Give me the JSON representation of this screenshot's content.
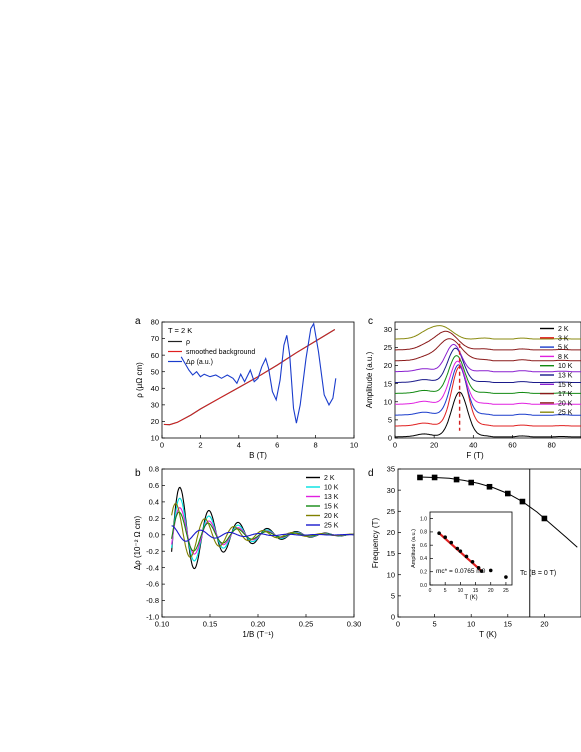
{
  "figure": {
    "panel_letters": [
      "a",
      "b",
      "c",
      "d"
    ]
  },
  "chart_data": [
    {
      "panel": "a",
      "type": "line",
      "annotation": "T = 2 K",
      "xlabel": "B (T)",
      "ylabel": "ρ (μΩ cm)",
      "xlim": [
        0,
        10
      ],
      "ylim": [
        10,
        80
      ],
      "x_ticks": [
        0,
        2,
        4,
        6,
        8,
        10
      ],
      "y_ticks": [
        10,
        20,
        30,
        40,
        50,
        60,
        70,
        80
      ],
      "legend": [
        "ρ",
        "smoothed background",
        "Δρ (a.u.)"
      ],
      "legend_position": "top-left",
      "series": [
        {
          "name": "ρ",
          "color": "#222222",
          "points": [
            [
              0.1,
              18.2
            ],
            [
              0.4,
              18.0
            ],
            [
              0.8,
              19.5
            ],
            [
              1.5,
              23.8
            ],
            [
              2,
              27.5
            ],
            [
              3,
              34
            ],
            [
              4,
              40.5
            ],
            [
              5,
              47
            ],
            [
              6,
              54
            ],
            [
              7,
              61.5
            ],
            [
              8,
              68.5
            ],
            [
              9,
              75.5
            ]
          ]
        },
        {
          "name": "smoothed background",
          "color": "#e02020",
          "points": [
            [
              0.1,
              18.2
            ],
            [
              0.4,
              18.0
            ],
            [
              0.8,
              19.5
            ],
            [
              1.5,
              23.8
            ],
            [
              2,
              27.5
            ],
            [
              3,
              34
            ],
            [
              4,
              40.5
            ],
            [
              5,
              47
            ],
            [
              6,
              54
            ],
            [
              7,
              61.5
            ],
            [
              8,
              68.5
            ],
            [
              9,
              75.5
            ]
          ]
        },
        {
          "name": "Δρ (a.u.)",
          "color": "#1a3ccc",
          "points": [
            [
              1.0,
              59
            ],
            [
              1.2,
              55
            ],
            [
              1.4,
              51
            ],
            [
              1.6,
              48
            ],
            [
              1.8,
              50
            ],
            [
              2.0,
              47
            ],
            [
              2.2,
              48.5
            ],
            [
              2.5,
              47
            ],
            [
              2.8,
              48
            ],
            [
              3.1,
              46
            ],
            [
              3.4,
              48
            ],
            [
              3.7,
              46
            ],
            [
              3.9,
              43
            ],
            [
              4.1,
              48.5
            ],
            [
              4.3,
              44
            ],
            [
              4.6,
              51
            ],
            [
              4.8,
              44
            ],
            [
              5.0,
              46
            ],
            [
              5.2,
              53
            ],
            [
              5.4,
              58
            ],
            [
              5.55,
              52
            ],
            [
              5.75,
              38
            ],
            [
              5.95,
              33
            ],
            [
              6.15,
              45
            ],
            [
              6.35,
              66
            ],
            [
              6.5,
              72
            ],
            [
              6.65,
              60
            ],
            [
              6.85,
              28
            ],
            [
              7.0,
              19
            ],
            [
              7.2,
              30
            ],
            [
              7.5,
              58
            ],
            [
              7.75,
              76
            ],
            [
              7.9,
              79
            ],
            [
              8.15,
              62
            ],
            [
              8.45,
              36
            ],
            [
              8.7,
              30
            ],
            [
              8.9,
              34
            ],
            [
              9.05,
              46
            ]
          ]
        }
      ]
    },
    {
      "panel": "b",
      "type": "line",
      "xlabel": "1/B (T⁻¹)",
      "ylabel": "Δρ (10⁻² Ω cm)",
      "xlim": [
        0.1,
        0.3
      ],
      "ylim": [
        -1.0,
        0.8
      ],
      "x_ticks": [
        0.1,
        0.15,
        0.2,
        0.25,
        0.3
      ],
      "y_ticks": [
        -1.0,
        -0.8,
        -0.6,
        -0.4,
        -0.2,
        0.0,
        0.2,
        0.4,
        0.6,
        0.8
      ],
      "legend_position": "top-right",
      "series": [
        {
          "name": "2 K",
          "color": "#000000",
          "amplitude": 0.7,
          "phase": 0.0
        },
        {
          "name": "10 K",
          "color": "#00e0e0",
          "amplitude": 0.54,
          "phase": 0.0
        },
        {
          "name": "13 K",
          "color": "#e020e0",
          "amplitude": 0.4,
          "phase": 0.0
        },
        {
          "name": "15 K",
          "color": "#138a13",
          "amplitude": 0.33,
          "phase": 0.15
        },
        {
          "name": "20 K",
          "color": "#808000",
          "amplitude": 0.42,
          "phase": 0.9
        },
        {
          "name": "25 K",
          "color": "#1a1acc",
          "amplitude": 0.11,
          "phase": 1.8
        }
      ],
      "oscillation": {
        "frequency_T": 33,
        "x_start": 0.11,
        "x_end": 0.3,
        "damping": 12
      }
    },
    {
      "panel": "c",
      "type": "line",
      "xlabel": "F (T)",
      "ylabel": "Amplitude (a.u.)",
      "xlim": [
        0,
        95
      ],
      "ylim": [
        0,
        32
      ],
      "x_ticks": [
        0,
        20,
        40,
        60,
        80
      ],
      "y_ticks": [
        0,
        5,
        10,
        15,
        20,
        25,
        30
      ],
      "legend_position": "right",
      "peak_marker_F": 33,
      "series": [
        {
          "name": "2 K",
          "color": "#000000",
          "offset": 0,
          "peak": 12.5,
          "peak_F": 33
        },
        {
          "name": "3 K",
          "color": "#e02020",
          "offset": 3,
          "peak": 19.5,
          "peak_F": 33
        },
        {
          "name": "5 K",
          "color": "#1a3ccc",
          "offset": 6,
          "peak": 20.0,
          "peak_F": 32.5
        },
        {
          "name": "8 K",
          "color": "#e020e0",
          "offset": 9,
          "peak": 21.0,
          "peak_F": 32
        },
        {
          "name": "10 K",
          "color": "#138a13",
          "offset": 12,
          "peak": 22.5,
          "peak_F": 31.5
        },
        {
          "name": "13 K",
          "color": "#1a1a8a",
          "offset": 15,
          "peak": 24.5,
          "peak_F": 31
        },
        {
          "name": "15 K",
          "color": "#8a20d0",
          "offset": 18,
          "peak": 25.5,
          "peak_F": 30
        },
        {
          "name": "17 K",
          "color": "#8a1a1a",
          "offset": 21,
          "peak": 27.0,
          "peak_F": 28
        },
        {
          "name": "20 K",
          "color": "#8a1a1a",
          "offset": 24,
          "peak": 29.0,
          "peak_F": 26
        },
        {
          "name": "25 K",
          "color": "#8a8a10",
          "offset": 27,
          "peak": 30.5,
          "peak_F": 23
        }
      ]
    },
    {
      "panel": "d",
      "type": "scatter",
      "xlabel": "T (K)",
      "ylabel": "Frequency (T)",
      "xlim": [
        0,
        25
      ],
      "ylim": [
        0,
        35
      ],
      "x_ticks": [
        0,
        5,
        10,
        15,
        20
      ],
      "y_ticks": [
        0,
        5,
        10,
        15,
        20,
        25,
        30,
        35
      ],
      "annotation": "Tc (B = 0 T)",
      "tc_line_T": 18,
      "points": [
        [
          3,
          33
        ],
        [
          5,
          33
        ],
        [
          8,
          32.5
        ],
        [
          10,
          31.8
        ],
        [
          12.5,
          30.8
        ],
        [
          15,
          29.2
        ],
        [
          17,
          27.3
        ],
        [
          20,
          23.3
        ]
      ],
      "fit_curve": [
        [
          3,
          33.1
        ],
        [
          5,
          33
        ],
        [
          7,
          32.8
        ],
        [
          9,
          32.3
        ],
        [
          11,
          31.6
        ],
        [
          13,
          30.6
        ],
        [
          15,
          29.2
        ],
        [
          17,
          27.3
        ],
        [
          19,
          24.8
        ],
        [
          21,
          21.8
        ],
        [
          23,
          18.8
        ],
        [
          24.5,
          16.5
        ]
      ],
      "inset": {
        "xlabel": "T (K)",
        "ylabel": "Amplitude (a.u.)",
        "xlim": [
          0,
          27
        ],
        "ylim": [
          0,
          1.1
        ],
        "x_ticks": [
          0,
          5,
          10,
          15,
          20,
          25
        ],
        "y_ticks": [
          0.0,
          0.2,
          0.4,
          0.6,
          0.8,
          1.0
        ],
        "annotation": "mc* = 0.0765 m0",
        "points": [
          [
            3,
            0.78
          ],
          [
            5,
            0.72
          ],
          [
            7,
            0.64
          ],
          [
            9,
            0.55
          ],
          [
            10,
            0.51
          ],
          [
            12,
            0.43
          ],
          [
            14,
            0.35
          ],
          [
            16,
            0.26
          ],
          [
            17,
            0.21
          ],
          [
            20,
            0.22
          ],
          [
            25,
            0.12
          ]
        ],
        "fit": [
          [
            3,
            0.78
          ],
          [
            17,
            0.21
          ]
        ]
      }
    }
  ]
}
